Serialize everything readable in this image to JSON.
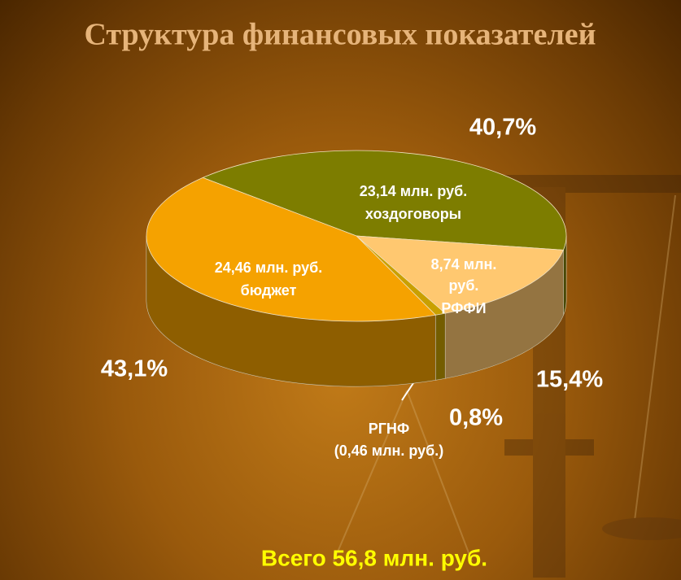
{
  "chart_data": {
    "type": "pie",
    "title": "Структура финансовых показателей",
    "categories": [
      "хоздоговоры",
      "РФФИ",
      "РГНФ",
      "бюджет"
    ],
    "values": [
      40.7,
      15.4,
      0.8,
      43.1
    ],
    "value_labels": [
      "40,7%",
      "15,4%",
      "0,8%",
      "43,1%"
    ],
    "amount_labels": [
      "23,14 млн. руб.",
      "8,74 млн. руб.",
      "(0,46 млн. руб.)",
      "24,46 млн. руб."
    ],
    "colors": [
      "#7d7d00",
      "#ffc870",
      "#c9a000",
      "#f5a200"
    ],
    "annotation": "Всего 56,8 млн. руб."
  }
}
